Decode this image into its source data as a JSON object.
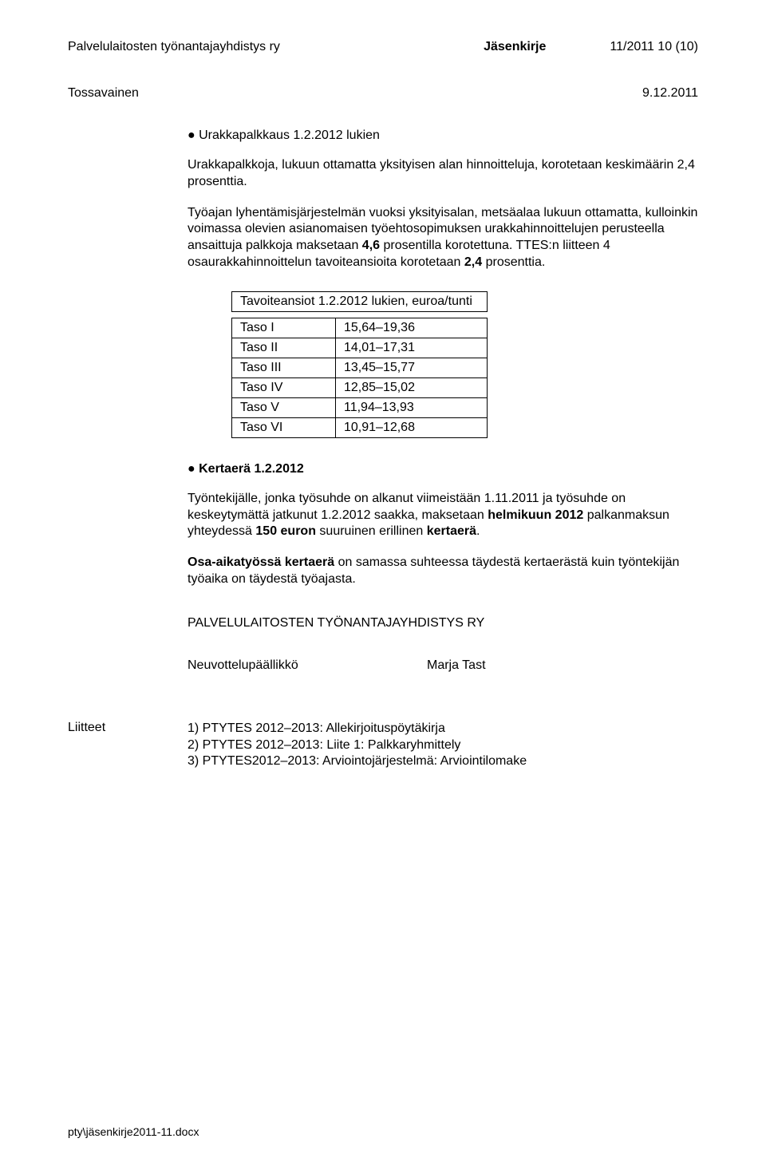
{
  "header": {
    "org": "Palvelulaitosten työnantajayhdistys ry",
    "docType": "Jäsenkirje",
    "pageInfo": "11/2011    10 (10)"
  },
  "subHeader": {
    "author": "Tossavainen",
    "date": "9.12.2011"
  },
  "section1": {
    "heading": "● Urakkapalkkaus 1.2.2012 lukien",
    "para1": "Urakkapalkkoja, lukuun ottamatta yksityisen alan hinnoitteluja, korotetaan keskimäärin 2,4 prosenttia.",
    "para2": "Työajan lyhentämisjärjestelmän vuoksi yksityisalan, metsäalaa lukuun ottamatta, kulloinkin voimassa olevien asianomaisen työehtosopimuksen urakkahinnoittelujen perusteella ansaittuja palkkoja maksetaan ",
    "para2b": "4,6",
    "para2c": " prosentilla korotettuna. TTES:n liitteen 4 osaurakkahinnoittelun tavoiteansioita korotetaan ",
    "para2d": "2,4",
    "para2e": " prosenttia."
  },
  "table": {
    "title": "Tavoiteansiot 1.2.2012 lukien, euroa/tunti",
    "rows": [
      {
        "label": "Taso I",
        "value": "15,64–19,36"
      },
      {
        "label": "Taso II",
        "value": "14,01–17,31"
      },
      {
        "label": "Taso III",
        "value": "13,45–15,77"
      },
      {
        "label": "Taso IV",
        "value": "12,85–15,02"
      },
      {
        "label": "Taso V",
        "value": "11,94–13,93"
      },
      {
        "label": "Taso VI",
        "value": "10,91–12,68"
      }
    ]
  },
  "section2": {
    "heading": "● Kertaerä 1.2.2012",
    "para1a": "Työntekijälle, jonka työsuhde on alkanut viimeistään 1.11.2011 ja työsuhde on keskeytymättä jatkunut 1.2.2012 saakka, maksetaan ",
    "para1b": "helmikuun 2012",
    "para1c": " palkanmaksun yhteydessä ",
    "para1d": "150 euron",
    "para1e": " suuruinen erillinen ",
    "para1f": "kertaerä",
    "para1g": ".",
    "para2a": "Osa-aikatyössä kertaerä",
    "para2b": " on samassa suhteessa täydestä kertaerästä kuin työntekijän työaika on täydestä työajasta."
  },
  "signature": {
    "org": "PALVELULAITOSTEN TYÖNANTAJAYHDISTYS RY",
    "title": "Neuvottelupäällikkö",
    "name": "Marja Tast"
  },
  "attachments": {
    "label": "Liitteet",
    "items": [
      "1) PTYTES 2012–2013: Allekirjoituspöytäkirja",
      "2) PTYTES 2012–2013: Liite 1: Palkkaryhmittely",
      "3) PTYTES2012–2013: Arviointojärjestelmä: Arviointilomake"
    ]
  },
  "footer": "pty\\jäsenkirje2011-11.docx"
}
